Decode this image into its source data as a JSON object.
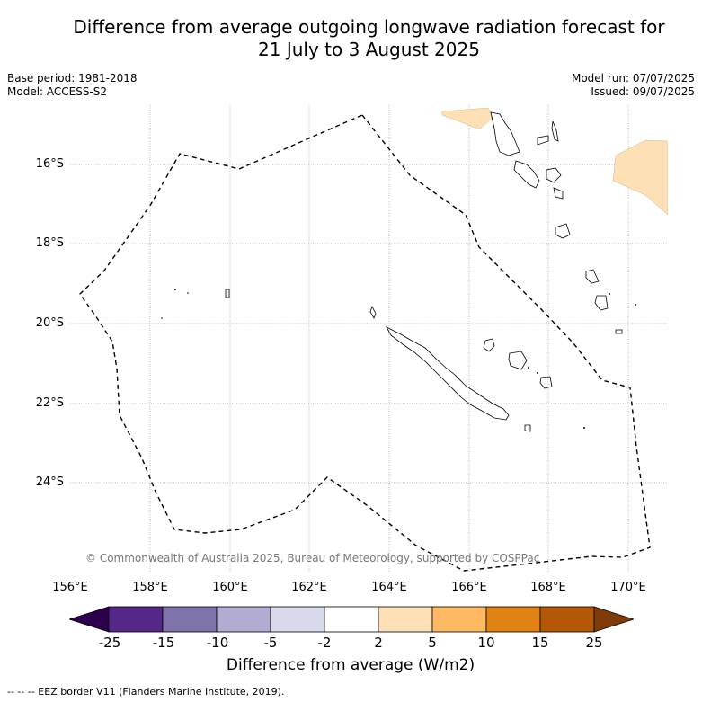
{
  "title": "Difference from average outgoing longwave radiation forecast for\n21 July to 3 August 2025",
  "meta_left": [
    "Base period: 1981-2018",
    "Model: ACCESS-S2"
  ],
  "meta_right": [
    "Model run: 07/07/2025",
    "Issued: 09/07/2025"
  ],
  "lat_ticks": [
    "16°S",
    "18°S",
    "20°S",
    "22°S",
    "24°S"
  ],
  "lon_ticks": [
    "156°E",
    "158°E",
    "160°E",
    "162°E",
    "164°E",
    "166°E",
    "168°E",
    "170°E"
  ],
  "copyright": "© Commonwealth of Australia 2025, Bureau of Meteorology, supported by COSPPac",
  "colorbar": {
    "labels": [
      "-25",
      "-15",
      "-10",
      "-5",
      "-2",
      "2",
      "5",
      "10",
      "15",
      "25"
    ],
    "colors": [
      "#2d004b",
      "#542788",
      "#8073ac",
      "#b2abd2",
      "#d8daeb",
      "#ffffff",
      "#fee0b6",
      "#fdb863",
      "#e08214",
      "#b35806",
      "#7f3b08"
    ],
    "title": "Difference from average (W/m2)"
  },
  "eez_legend": "--  --  -- EEZ border V11 (Flanders Marine Institute, 2019)."
}
